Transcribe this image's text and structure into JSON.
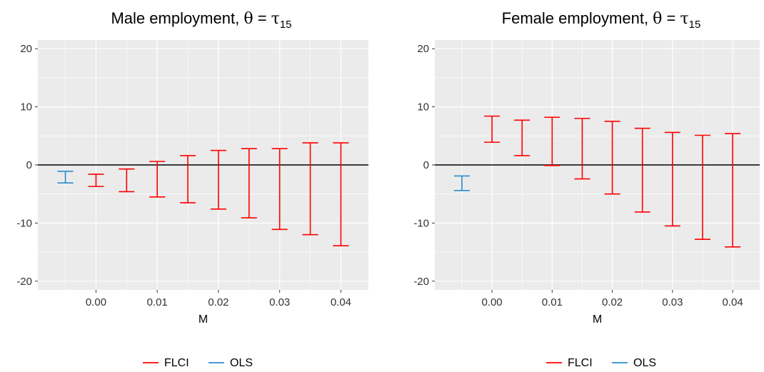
{
  "chart_data": [
    {
      "type": "errorbar",
      "title": "Male employment, θ = τ15",
      "title_parts": {
        "prefix": "Male employment, ",
        "theta": "θ",
        "eq": " = ",
        "tau": "τ",
        "sub": "15"
      },
      "xlabel": "M",
      "ylabel": "",
      "xlim": [
        -0.0095,
        0.0445
      ],
      "ylim": [
        -21.5,
        21.5
      ],
      "x_ticks": [
        0.0,
        0.01,
        0.02,
        0.03,
        0.04
      ],
      "x_tick_labels": [
        "0.00",
        "0.01",
        "0.02",
        "0.03",
        "0.04"
      ],
      "y_ticks": [
        -20,
        -10,
        0,
        10,
        20
      ],
      "y_tick_labels": [
        "-20",
        "-10",
        "0",
        "10",
        "20"
      ],
      "grid": true,
      "hline": 0,
      "legend_position": "bottom",
      "series": [
        {
          "name": "FLCI",
          "color": "#FF0000",
          "points": [
            {
              "x": 0.0,
              "lower": -3.7,
              "upper": -1.6
            },
            {
              "x": 0.005,
              "lower": -4.6,
              "upper": -0.7
            },
            {
              "x": 0.01,
              "lower": -5.5,
              "upper": 0.6
            },
            {
              "x": 0.015,
              "lower": -6.5,
              "upper": 1.6
            },
            {
              "x": 0.02,
              "lower": -7.6,
              "upper": 2.5
            },
            {
              "x": 0.025,
              "lower": -9.1,
              "upper": 2.8
            },
            {
              "x": 0.03,
              "lower": -11.1,
              "upper": 2.8
            },
            {
              "x": 0.035,
              "lower": -12.0,
              "upper": 3.8
            },
            {
              "x": 0.04,
              "lower": -13.9,
              "upper": 3.8
            }
          ]
        },
        {
          "name": "OLS",
          "color": "#2B8CCF",
          "points": [
            {
              "x": -0.005,
              "lower": -3.1,
              "upper": -1.1
            }
          ]
        }
      ]
    },
    {
      "type": "errorbar",
      "title": "Female employment, θ = τ15",
      "title_parts": {
        "prefix": "Female employment, ",
        "theta": "θ",
        "eq": " = ",
        "tau": "τ",
        "sub": "15"
      },
      "xlabel": "M",
      "ylabel": "",
      "xlim": [
        -0.0095,
        0.0445
      ],
      "ylim": [
        -21.5,
        21.5
      ],
      "x_ticks": [
        0.0,
        0.01,
        0.02,
        0.03,
        0.04
      ],
      "x_tick_labels": [
        "0.00",
        "0.01",
        "0.02",
        "0.03",
        "0.04"
      ],
      "y_ticks": [
        -20,
        -10,
        0,
        10,
        20
      ],
      "y_tick_labels": [
        "-20",
        "-10",
        "0",
        "10",
        "20"
      ],
      "grid": true,
      "hline": 0,
      "legend_position": "bottom",
      "series": [
        {
          "name": "FLCI",
          "color": "#FF0000",
          "points": [
            {
              "x": 0.0,
              "lower": 3.9,
              "upper": 8.4
            },
            {
              "x": 0.005,
              "lower": 1.6,
              "upper": 7.7
            },
            {
              "x": 0.01,
              "lower": -0.1,
              "upper": 8.2
            },
            {
              "x": 0.015,
              "lower": -2.4,
              "upper": 8.0
            },
            {
              "x": 0.02,
              "lower": -5.0,
              "upper": 7.5
            },
            {
              "x": 0.025,
              "lower": -8.1,
              "upper": 6.3
            },
            {
              "x": 0.03,
              "lower": -10.5,
              "upper": 5.6
            },
            {
              "x": 0.035,
              "lower": -12.8,
              "upper": 5.1
            },
            {
              "x": 0.04,
              "lower": -14.1,
              "upper": 5.4
            }
          ]
        },
        {
          "name": "OLS",
          "color": "#2B8CCF",
          "points": [
            {
              "x": -0.005,
              "lower": -4.4,
              "upper": -1.9
            }
          ]
        }
      ]
    }
  ]
}
